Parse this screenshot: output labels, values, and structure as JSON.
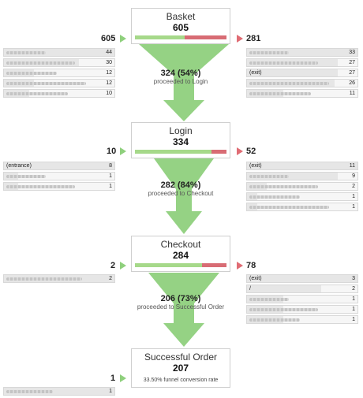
{
  "steps": [
    {
      "name": "Basket",
      "count": "605",
      "entries": "605",
      "exits": "281",
      "continue_fraction": 0.54
    },
    {
      "name": "Login",
      "count": "334",
      "entries": "10",
      "exits": "52",
      "continue_fraction": 0.84
    },
    {
      "name": "Checkout",
      "count": "284",
      "entries": "2",
      "exits": "78",
      "continue_fraction": 0.73
    },
    {
      "name": "Successful Order",
      "count": "207",
      "entries": "1",
      "conversion_note": "33.50% funnel conversion rate"
    }
  ],
  "transitions": [
    {
      "value": "324 (54%)",
      "label": "proceeded to Login"
    },
    {
      "value": "282 (84%)",
      "label": "proceeded to Checkout"
    },
    {
      "value": "206 (73%)",
      "label": "proceeded to Successful Order"
    }
  ],
  "sources": [
    [
      {
        "label": "",
        "value": "44"
      },
      {
        "label": "",
        "value": "30"
      },
      {
        "label": "",
        "value": "12"
      },
      {
        "label": "",
        "value": "12"
      },
      {
        "label": "",
        "value": "10"
      }
    ],
    [
      {
        "label": "(entrance)",
        "value": "8"
      },
      {
        "label": "",
        "value": "1"
      },
      {
        "label": "",
        "value": "1"
      }
    ],
    [
      {
        "label": "",
        "value": "2"
      }
    ],
    [
      {
        "label": "",
        "value": "1"
      }
    ]
  ],
  "exits": [
    [
      {
        "label": "",
        "value": "33"
      },
      {
        "label": "",
        "value": "27"
      },
      {
        "label": "(exit)",
        "value": "27"
      },
      {
        "label": "",
        "value": "26"
      },
      {
        "label": "",
        "value": "11"
      }
    ],
    [
      {
        "label": "(exit)",
        "value": "11"
      },
      {
        "label": "",
        "value": "9"
      },
      {
        "label": "",
        "value": "2"
      },
      {
        "label": "",
        "value": "1"
      },
      {
        "label": "",
        "value": "1"
      }
    ],
    [
      {
        "label": "(exit)",
        "value": "3"
      },
      {
        "label": "/",
        "value": "2"
      },
      {
        "label": "",
        "value": "1"
      },
      {
        "label": "",
        "value": "1"
      },
      {
        "label": "",
        "value": "1"
      }
    ]
  ],
  "colors": {
    "continue": "#a6d98a",
    "exit": "#d86c74",
    "funnel": "#8fd07d"
  }
}
